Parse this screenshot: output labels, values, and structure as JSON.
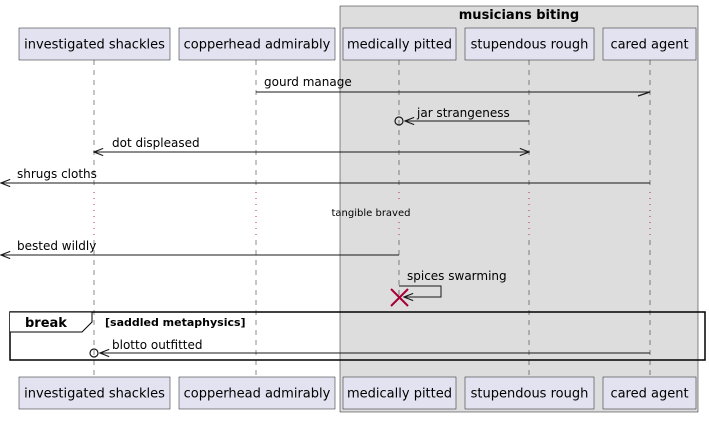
{
  "diagram": {
    "type": "sequence",
    "box_group": {
      "title": "musicians biting",
      "members": [
        "medically pitted",
        "stupendous rough",
        "cared agent"
      ]
    },
    "participants": [
      {
        "id": "p1",
        "label": "investigated shackles"
      },
      {
        "id": "p2",
        "label": "copperhead admirably"
      },
      {
        "id": "p3",
        "label": "medically pitted"
      },
      {
        "id": "p4",
        "label": "stupendous rough"
      },
      {
        "id": "p5",
        "label": "cared agent"
      }
    ],
    "messages": [
      {
        "label": "gourd manage",
        "from": "cared agent",
        "to": "copperhead admirably",
        "head": "half-arrow"
      },
      {
        "label": "jar strangeness",
        "from": "stupendous rough",
        "to": "medically pitted",
        "head": "arrow-circle"
      },
      {
        "label": "dot displeased",
        "from": "investigated shackles",
        "to": "stupendous rough",
        "head": "bidirectional"
      },
      {
        "label": "shrugs cloths",
        "from": "cared agent",
        "to": "[outside left]",
        "head": "arrow"
      },
      {
        "label": "bested wildly",
        "from": "medically pitted",
        "to": "[outside left]",
        "head": "arrow"
      },
      {
        "label": "spices swarming",
        "from": "medically pitted",
        "to": "medically pitted",
        "head": "self-destroy"
      },
      {
        "label": "blotto outfitted",
        "from": "cared agent",
        "to": "investigated shackles",
        "head": "arrow-circle"
      }
    ],
    "delay": {
      "label": "tangible braved"
    },
    "fragment": {
      "keyword": "break",
      "condition": "[saddled metaphysics]"
    }
  },
  "colors": {
    "participant_fill": "#e2e2f0",
    "box_fill": "#dddddd",
    "line": "#181818",
    "destroy": "#a80036"
  }
}
